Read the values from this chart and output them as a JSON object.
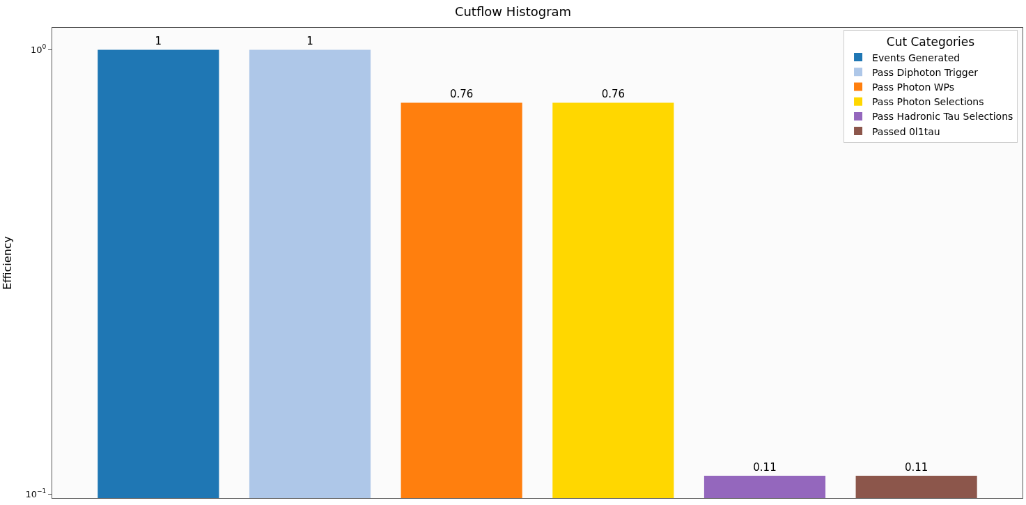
{
  "chart_data": {
    "type": "bar",
    "title": "Cutflow Histogram",
    "ylabel": "Efficiency",
    "legend_title": "Cut Categories",
    "categories": [
      null,
      null,
      null,
      null,
      null,
      null
    ],
    "series": [
      {
        "name": "Events Generated",
        "color": "#1f77b4",
        "values": [
          1,
          null,
          null,
          null,
          null,
          null
        ]
      },
      {
        "name": "Pass Diphoton Trigger",
        "color": "#aec7e8",
        "values": [
          null,
          1,
          null,
          null,
          null,
          null
        ]
      },
      {
        "name": "Pass Photon WPs",
        "color": "#ff7f0e",
        "values": [
          null,
          null,
          0.76,
          null,
          null,
          null
        ]
      },
      {
        "name": "Pass Photon Selections",
        "color": "#ffd700",
        "values": [
          null,
          null,
          null,
          0.76,
          null,
          null
        ]
      },
      {
        "name": "Pass Hadronic Tau Selections",
        "color": "#9467bd",
        "values": [
          null,
          null,
          null,
          null,
          0.11,
          null
        ]
      },
      {
        "name": "Passed 0l1tau",
        "color": "#8c564b",
        "values": [
          null,
          null,
          null,
          null,
          null,
          0.11
        ]
      }
    ],
    "log": "y",
    "ylim": [
      0.098,
      1.12
    ],
    "yticks": [
      {
        "value": 0.1,
        "label": "10$^{−1}$"
      },
      {
        "value": 1,
        "label": "10$^{0}$"
      }
    ],
    "data_labels": true,
    "legend": "top right",
    "tick_labels": "y"
  }
}
